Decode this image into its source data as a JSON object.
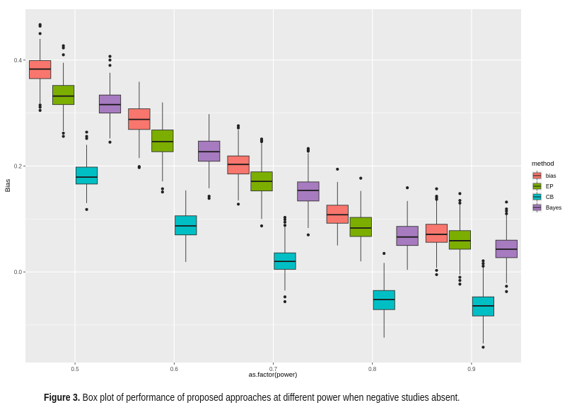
{
  "chart_data": {
    "type": "box",
    "title": "",
    "xlabel": "as.factor(power)",
    "ylabel": "Bias",
    "categories": [
      "0.5",
      "0.6",
      "0.7",
      "0.8",
      "0.9"
    ],
    "y_ticks": [
      0.0,
      0.2,
      0.4
    ],
    "y_tick_labels": [
      "0.0",
      "0.2",
      "0.4"
    ],
    "y_minor_gridlines": [
      -0.1,
      0.1,
      0.3
    ],
    "ylim": [
      -0.171,
      0.496
    ],
    "grid": true,
    "legend": {
      "title": "method",
      "placement": "right"
    },
    "series": [
      {
        "name": "bias",
        "color": "#F8766D",
        "boxes": [
          {
            "category": "0.5",
            "lower_whisker": 0.318,
            "q1": 0.365,
            "median": 0.383,
            "q3": 0.399,
            "upper_whisker": 0.44,
            "outliers": [
              0.467,
              0.464,
              0.45,
              0.315,
              0.311,
              0.305
            ]
          },
          {
            "category": "0.6",
            "lower_whisker": 0.215,
            "q1": 0.269,
            "median": 0.288,
            "q3": 0.308,
            "upper_whisker": 0.359,
            "outliers": [
              0.199,
              0.197
            ]
          },
          {
            "category": "0.7",
            "lower_whisker": 0.135,
            "q1": 0.185,
            "median": 0.203,
            "q3": 0.219,
            "upper_whisker": 0.268,
            "outliers": [
              0.276,
              0.272,
              0.128
            ]
          },
          {
            "category": "0.8",
            "lower_whisker": 0.05,
            "q1": 0.092,
            "median": 0.108,
            "q3": 0.126,
            "upper_whisker": 0.17,
            "outliers": [
              0.194
            ]
          },
          {
            "category": "0.9",
            "lower_whisker": 0.008,
            "q1": 0.056,
            "median": 0.071,
            "q3": 0.09,
            "upper_whisker": 0.135,
            "outliers": [
              0.157,
              0.143,
              0.14,
              0.137,
              0.003,
              -0.005
            ]
          }
        ]
      },
      {
        "name": "EP",
        "color": "#7CAE00",
        "boxes": [
          {
            "category": "0.5",
            "lower_whisker": 0.266,
            "q1": 0.316,
            "median": 0.332,
            "q3": 0.352,
            "upper_whisker": 0.395,
            "outliers": [
              0.427,
              0.423,
              0.41,
              0.262,
              0.256
            ]
          },
          {
            "category": "0.6",
            "lower_whisker": 0.171,
            "q1": 0.227,
            "median": 0.246,
            "q3": 0.268,
            "upper_whisker": 0.32,
            "outliers": [
              0.157,
              0.151
            ]
          },
          {
            "category": "0.7",
            "lower_whisker": 0.1,
            "q1": 0.153,
            "median": 0.171,
            "q3": 0.189,
            "upper_whisker": 0.243,
            "outliers": [
              0.251,
              0.248,
              0.246,
              0.087
            ]
          },
          {
            "category": "0.8",
            "lower_whisker": 0.02,
            "q1": 0.067,
            "median": 0.083,
            "q3": 0.103,
            "upper_whisker": 0.153,
            "outliers": [
              0.177
            ]
          },
          {
            "category": "0.9",
            "lower_whisker": -0.005,
            "q1": 0.043,
            "median": 0.059,
            "q3": 0.078,
            "upper_whisker": 0.128,
            "outliers": [
              0.148,
              0.135,
              0.13,
              -0.01,
              -0.016,
              -0.023
            ]
          }
        ]
      },
      {
        "name": "CB",
        "color": "#00BFC4",
        "boxes": [
          {
            "category": "0.5",
            "lower_whisker": 0.13,
            "q1": 0.166,
            "median": 0.179,
            "q3": 0.198,
            "upper_whisker": 0.24,
            "outliers": [
              0.264,
              0.256,
              0.252,
              0.118
            ]
          },
          {
            "category": "0.6",
            "lower_whisker": 0.019,
            "q1": 0.07,
            "median": 0.087,
            "q3": 0.106,
            "upper_whisker": 0.154,
            "outliers": []
          },
          {
            "category": "0.7",
            "lower_whisker": -0.035,
            "q1": 0.005,
            "median": 0.02,
            "q3": 0.036,
            "upper_whisker": 0.086,
            "outliers": [
              0.103,
              0.099,
              0.094,
              0.088,
              -0.047,
              -0.056
            ]
          },
          {
            "category": "0.8",
            "lower_whisker": -0.124,
            "q1": -0.071,
            "median": -0.052,
            "q3": -0.035,
            "upper_whisker": 0.017,
            "outliers": [
              0.035
            ]
          },
          {
            "category": "0.9",
            "lower_whisker": -0.135,
            "q1": -0.083,
            "median": -0.064,
            "q3": -0.047,
            "upper_whisker": 0.008,
            "outliers": [
              0.021,
              0.016,
              0.011,
              -0.142
            ]
          }
        ]
      },
      {
        "name": "Bayes",
        "color": "#C77CFF",
        "boxes": [
          {
            "category": "0.5",
            "lower_whisker": 0.252,
            "q1": 0.3,
            "median": 0.316,
            "q3": 0.334,
            "upper_whisker": 0.376,
            "outliers": [
              0.407,
              0.4,
              0.39,
              0.245
            ]
          },
          {
            "category": "0.6",
            "lower_whisker": 0.158,
            "q1": 0.209,
            "median": 0.227,
            "q3": 0.247,
            "upper_whisker": 0.298,
            "outliers": [
              0.143,
              0.139
            ]
          },
          {
            "category": "0.7",
            "lower_whisker": 0.083,
            "q1": 0.134,
            "median": 0.154,
            "q3": 0.17,
            "upper_whisker": 0.224,
            "outliers": [
              0.233,
              0.23,
              0.228,
              0.07
            ]
          },
          {
            "category": "0.8",
            "lower_whisker": 0.004,
            "q1": 0.05,
            "median": 0.066,
            "q3": 0.086,
            "upper_whisker": 0.134,
            "outliers": [
              0.159
            ]
          },
          {
            "category": "0.9",
            "lower_whisker": -0.021,
            "q1": 0.027,
            "median": 0.043,
            "q3": 0.06,
            "upper_whisker": 0.108,
            "outliers": [
              0.132,
              0.119,
              0.115,
              0.11,
              -0.027,
              -0.037
            ]
          }
        ]
      }
    ]
  },
  "caption": {
    "label": "Figure 3.",
    "text": " Box plot of performance of proposed approaches at different power when negative studies absent."
  },
  "colors": {
    "panel_background": "#EBEBEB",
    "gridline": "#FFFFFF",
    "box_outline": "#333333",
    "outlier": "#222222",
    "bayes_fill": "#A77BBF"
  }
}
